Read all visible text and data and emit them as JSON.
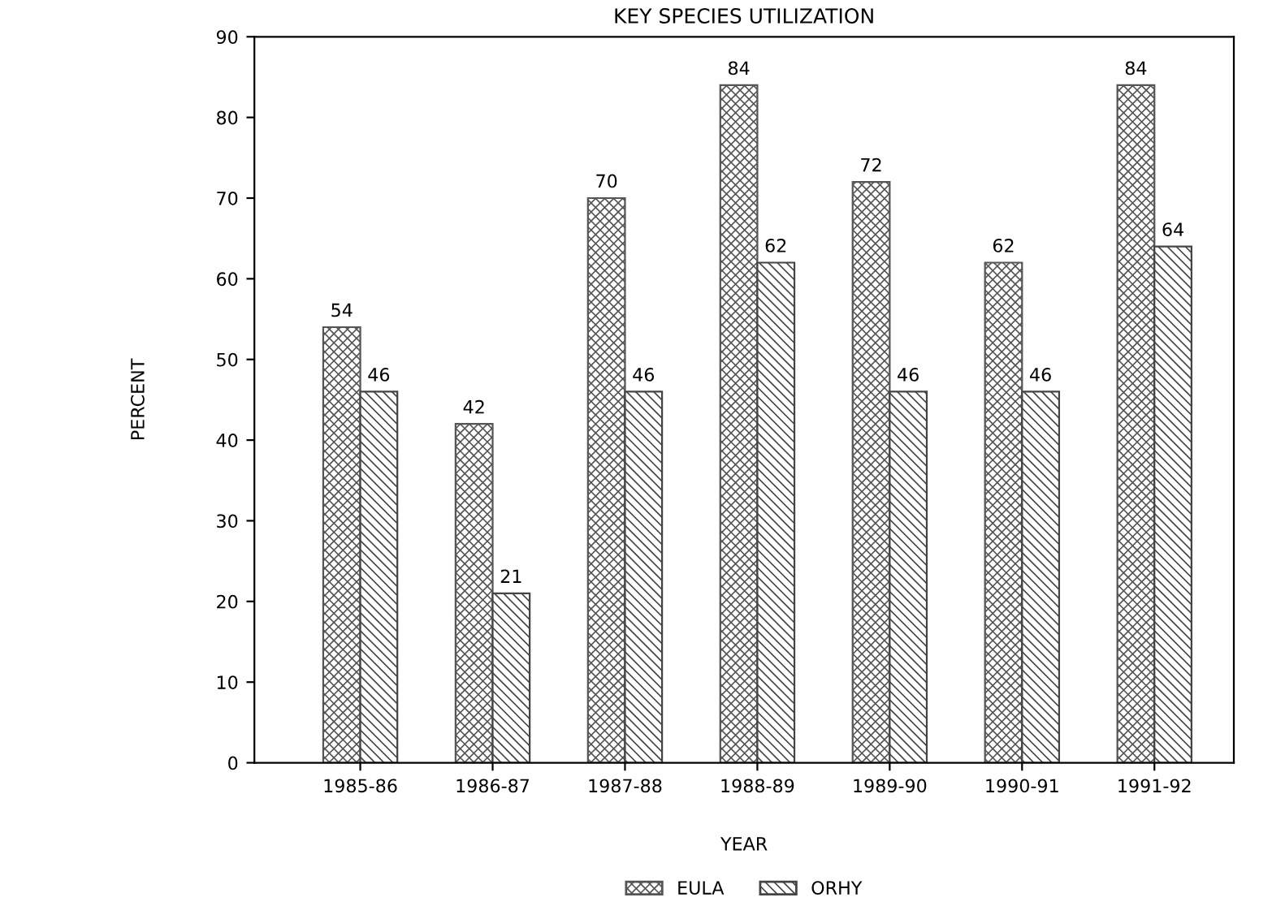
{
  "chart_data": {
    "type": "bar",
    "title": "KEY SPECIES UTILIZATION",
    "xlabel": "YEAR",
    "ylabel": "PERCENT",
    "categories": [
      "1985-86",
      "1986-87",
      "1987-88",
      "1988-89",
      "1989-90",
      "1990-91",
      "1991-92"
    ],
    "series": [
      {
        "name": "EULA",
        "color": "#555555",
        "values": [
          54,
          42,
          70,
          84,
          72,
          62,
          84
        ]
      },
      {
        "name": "ORHY",
        "color": "#444444",
        "values": [
          46,
          21,
          46,
          62,
          46,
          46,
          64
        ]
      }
    ],
    "ylim": [
      0,
      90
    ],
    "yticks": [
      0,
      10,
      20,
      30,
      40,
      50,
      60,
      70,
      80,
      90
    ],
    "grid": false,
    "legend": "bottom",
    "data_labels": true
  }
}
